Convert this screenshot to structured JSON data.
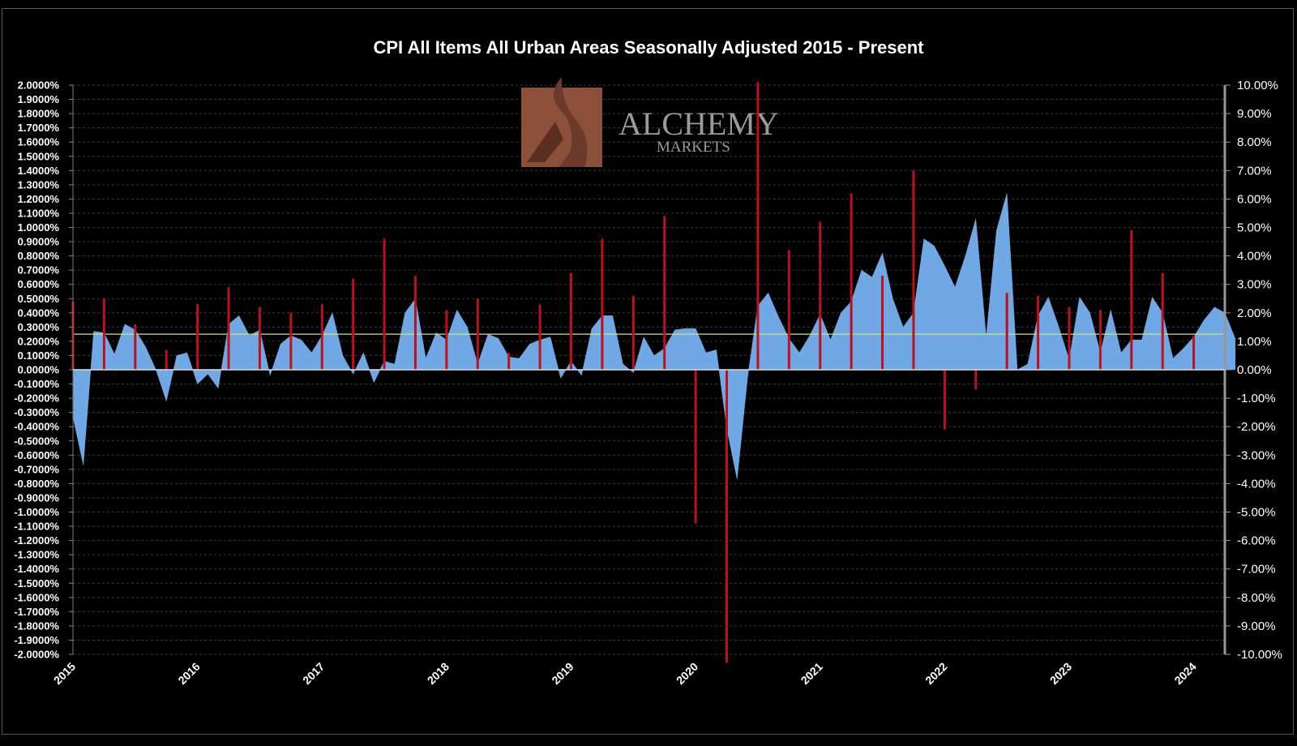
{
  "chart_data": {
    "type": "area",
    "title": "CPI All Items All Urban Areas Seasonally Adjusted 2015 - Present",
    "x_start": "2015-01",
    "x_tick_labels": [
      "2015",
      "2016",
      "2017",
      "2018",
      "2019",
      "2020",
      "2021",
      "2022",
      "2023",
      "2024"
    ],
    "y_left": {
      "range": [
        -0.02,
        0.02
      ],
      "step": 0.001,
      "format": "percent_4dp"
    },
    "y_right": {
      "range": [
        -0.1,
        0.1
      ],
      "step": 0.01,
      "format": "percent_2dp"
    },
    "grid": true,
    "legend": "none",
    "series": [
      {
        "type": "area",
        "axis": "left",
        "color": "#6fa8e4",
        "values": [
          -0.0033,
          -0.0067,
          0.0027,
          0.0026,
          0.0011,
          0.0032,
          0.0028,
          0.0016,
          0.0,
          -0.0022,
          0.001,
          0.0012,
          -0.001,
          -0.0003,
          -0.0013,
          0.0032,
          0.0038,
          0.0024,
          0.0028,
          -0.0004,
          0.0018,
          0.0024,
          0.0021,
          0.0012,
          0.0024,
          0.004,
          0.001,
          -0.0003,
          0.0012,
          -0.0009,
          0.0006,
          0.0004,
          0.004,
          0.005,
          0.0008,
          0.0026,
          0.0021,
          0.0042,
          0.003,
          0.0004,
          0.0025,
          0.0022,
          0.0009,
          0.0008,
          0.0018,
          0.0021,
          0.0023,
          -0.0006,
          0.0006,
          -0.0004,
          0.0029,
          0.0038,
          0.0038,
          0.0004,
          -0.0002,
          0.0023,
          0.001,
          0.0015,
          0.0028,
          0.0029,
          0.0029,
          0.0012,
          0.0014,
          -0.0041,
          -0.0077,
          -0.0006,
          0.0045,
          0.0054,
          0.0037,
          0.0022,
          0.0012,
          0.0024,
          0.0039,
          0.0021,
          0.004,
          0.0048,
          0.007,
          0.0065,
          0.0082,
          0.005,
          0.003,
          0.004,
          0.0092,
          0.0087,
          0.0073,
          0.0058,
          0.008,
          0.0106,
          0.0023,
          0.0098,
          0.0124,
          0.0,
          0.0004,
          0.0038,
          0.0051,
          0.003,
          0.0007,
          0.0051,
          0.004,
          0.0012,
          0.0042,
          0.0012,
          0.0021,
          0.0021,
          0.0051,
          0.004,
          0.0008,
          0.0015,
          0.0023,
          0.0035,
          0.0044,
          0.004,
          0.0022
        ]
      },
      {
        "type": "bar",
        "axis": "right",
        "color": "#c0101a",
        "values": [
          0.024,
          0.025,
          0.016,
          0.007,
          0.023,
          0.029,
          0.022,
          0.02,
          0.023,
          0.032,
          0.046,
          0.033,
          0.021,
          0.025,
          0.006,
          0.023,
          0.034,
          0.046,
          0.026,
          0.054,
          -0.054,
          -0.103,
          0.101,
          0.042,
          0.052,
          0.062,
          0.033,
          0.07,
          -0.021,
          -0.007,
          0.027,
          0.026,
          0.022,
          0.021,
          0.049,
          0.034,
          0.012
        ]
      },
      {
        "type": "line",
        "axis": "left",
        "name": "",
        "color": "#d8e07a",
        "values": [
          0.0025
        ]
      }
    ]
  },
  "watermark": {
    "brand": "ALCHEMY",
    "sub": "MARKETS",
    "box_color": "#8b4f3a"
  }
}
